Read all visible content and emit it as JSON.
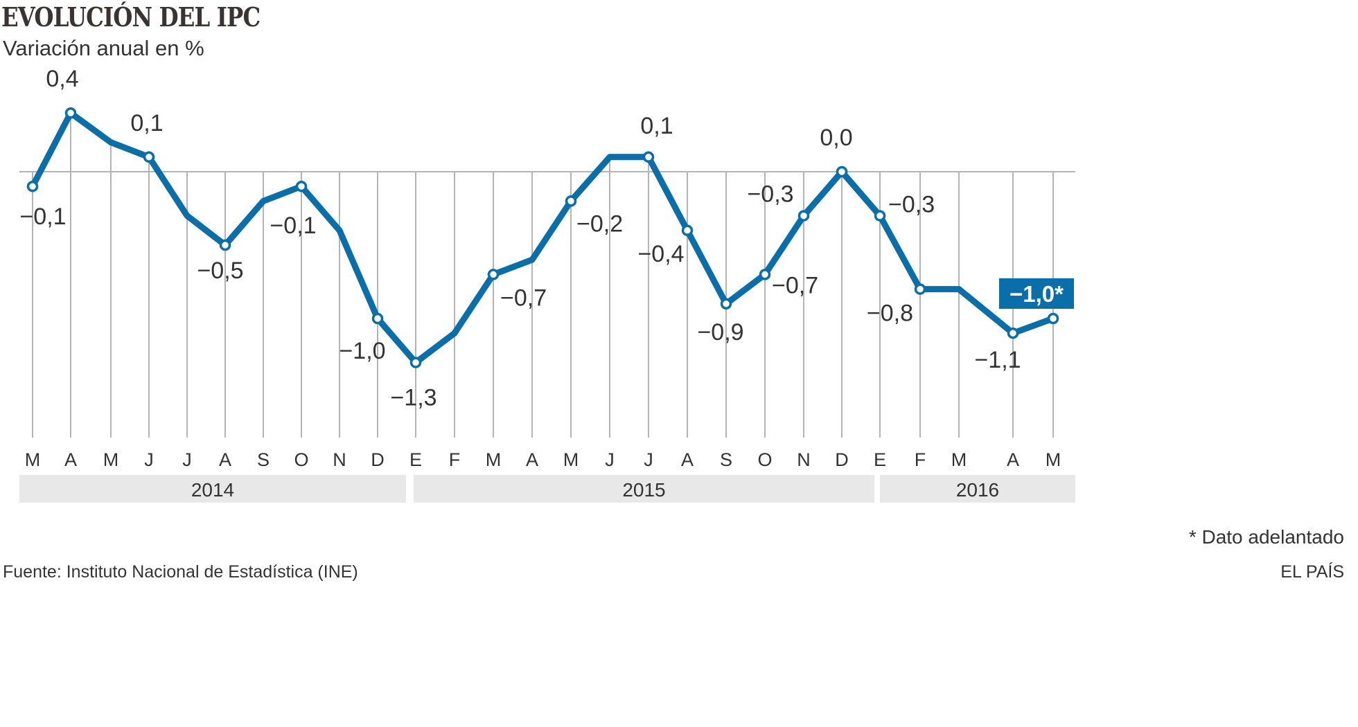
{
  "title": "EVOLUCIÓN DEL IPC",
  "subtitle": "Variación anual en %",
  "note": "* Dato adelantado",
  "source": "Fuente: Instituto Nacional de Estadística (INE)",
  "credit": "EL PAÍS",
  "colors": {
    "line": "#0a6ea8",
    "grid": "#b4b4b4",
    "year_band": "#e8e8e8",
    "text": "#333333"
  },
  "chart_data": {
    "type": "line",
    "title": "EVOLUCIÓN DEL IPC",
    "ylabel": "Variación anual en %",
    "categories": [
      "M",
      "A",
      "M",
      "J",
      "J",
      "A",
      "S",
      "O",
      "N",
      "D",
      "E",
      "F",
      "M",
      "A",
      "M",
      "J",
      "J",
      "A",
      "S",
      "O",
      "N",
      "D",
      "E",
      "F",
      "M",
      "A",
      "M"
    ],
    "years": [
      {
        "label": "2014",
        "months": 10
      },
      {
        "label": "2015",
        "months": 12
      },
      {
        "label": "2016",
        "months": 5
      }
    ],
    "values": [
      -0.1,
      0.4,
      0.2,
      0.1,
      -0.3,
      -0.5,
      -0.2,
      -0.1,
      -0.4,
      -1.0,
      -1.3,
      -1.1,
      -0.7,
      -0.6,
      -0.2,
      0.1,
      0.1,
      -0.4,
      -0.9,
      -0.7,
      -0.3,
      0.0,
      -0.3,
      -0.8,
      -0.8,
      -1.1,
      -1.0
    ],
    "data_labels": [
      "−0,1",
      "0,4",
      null,
      "0,1",
      null,
      "−0,5",
      null,
      "−0,1",
      null,
      "−1,0",
      "−1,3",
      null,
      "−0,7",
      null,
      "−0,2",
      null,
      "0,1",
      "−0,4",
      "−0,9",
      "−0,7",
      "−0,3",
      "0,0",
      "−0,3",
      "−0,8",
      null,
      "−1,1",
      "−1,0*"
    ],
    "highlight_last": true,
    "ylim": [
      -1.6,
      0.5
    ],
    "grid": true,
    "zero_line": true
  }
}
